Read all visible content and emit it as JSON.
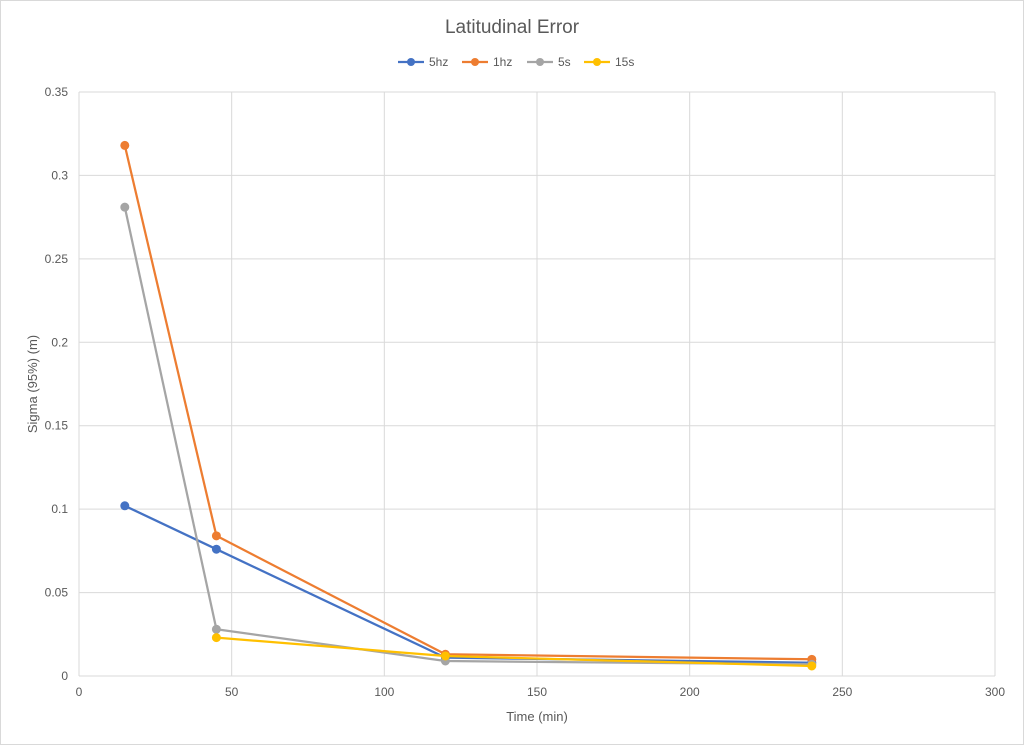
{
  "chart_data": {
    "type": "line",
    "title": "Latitudinal Error",
    "xlabel": "Time (min)",
    "ylabel": "Sigma (95%) (m)",
    "xlim": [
      0,
      300
    ],
    "ylim": [
      0,
      0.35
    ],
    "xticks": [
      0,
      50,
      100,
      150,
      200,
      250,
      300
    ],
    "yticks": [
      0,
      0.05,
      0.1,
      0.15,
      0.2,
      0.25,
      0.3,
      0.35
    ],
    "xtick_labels": [
      "0",
      "50",
      "100",
      "150",
      "200",
      "250",
      "300"
    ],
    "ytick_labels": [
      "0",
      "0.05",
      "0.1",
      "0.15",
      "0.2",
      "0.25",
      "0.3",
      "0.35"
    ],
    "grid": true,
    "legend_position": "top",
    "x": [
      15,
      45,
      120,
      240
    ],
    "series": [
      {
        "name": "5hz",
        "color": "#4472C4",
        "values": [
          0.102,
          0.076,
          0.011,
          0.008
        ]
      },
      {
        "name": "1hz",
        "color": "#ED7D31",
        "values": [
          0.318,
          0.084,
          0.013,
          0.01
        ]
      },
      {
        "name": "5s",
        "color": "#A5A5A5",
        "values": [
          0.281,
          0.028,
          0.009,
          0.007
        ]
      },
      {
        "name": "15s",
        "color": "#FFC000",
        "values": [
          null,
          0.023,
          0.012,
          0.006
        ]
      }
    ]
  }
}
